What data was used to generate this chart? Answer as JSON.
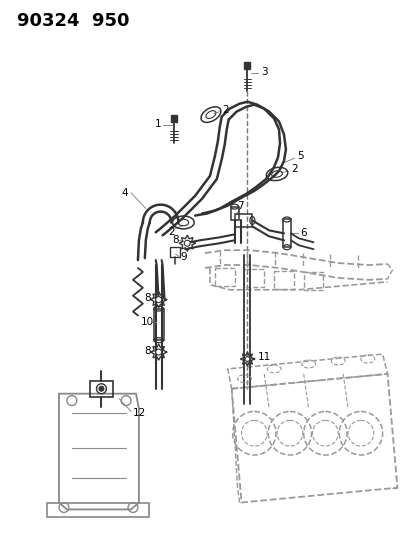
{
  "title": "90324  950",
  "bg_color": "#ffffff",
  "title_fontsize": 13,
  "fig_width": 4.14,
  "fig_height": 5.33,
  "dpi": 100,
  "line_color": "#333333",
  "gray": "#888888"
}
